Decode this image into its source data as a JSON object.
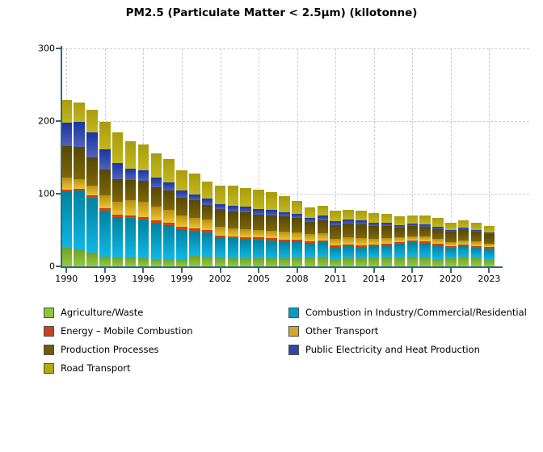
{
  "title": "PM2.5 (Particulate Matter < 2.5µm) (kilotonne)",
  "chart_data": {
    "type": "bar",
    "stacked": true,
    "title": "PM2.5 (Particulate Matter < 2.5µm) (kilotonne)",
    "xlabel": "",
    "ylabel": "",
    "ylim": [
      0,
      300
    ],
    "y_ticks": [
      0,
      100,
      200,
      300
    ],
    "categories": [
      1990,
      1991,
      1992,
      1993,
      1994,
      1995,
      1996,
      1997,
      1998,
      1999,
      2000,
      2001,
      2002,
      2003,
      2004,
      2005,
      2006,
      2007,
      2008,
      2009,
      2010,
      2011,
      2012,
      2013,
      2014,
      2015,
      2016,
      2017,
      2018,
      2019,
      2020,
      2021,
      2022,
      2023
    ],
    "x_tick_labels": [
      "1990",
      "1993",
      "1996",
      "1999",
      "2002",
      "2005",
      "2008",
      "2011",
      "2014",
      "2017",
      "2020",
      "2023"
    ],
    "grid": "dashed-gray, horizontal at 100/200/300 and vertical at labeled years",
    "legend_position": "bottom, two columns",
    "series": [
      {
        "name": "Agriculture/Waste",
        "legend_color": "#8CC63D",
        "gradient_top": "#6FA12B",
        "gradient_bottom": "#93CA3D",
        "values": [
          26,
          23,
          19,
          13,
          12,
          12,
          11,
          10,
          10,
          10,
          15,
          13,
          12,
          11,
          11,
          11,
          11,
          11,
          12,
          12,
          13,
          10,
          11,
          11,
          12,
          12,
          12,
          13,
          12,
          10,
          11,
          13,
          12,
          10
        ]
      },
      {
        "name": "Combustion in Industry/Commercial/Residential",
        "legend_color": "#009FC6",
        "gradient_top": "#00819E",
        "gradient_bottom": "#0FB7E6",
        "values": [
          77,
          81,
          76,
          64,
          56,
          55,
          54,
          50,
          47,
          41,
          34,
          34,
          28,
          28,
          27,
          26,
          25,
          23,
          22,
          20,
          20,
          17,
          17,
          16,
          16,
          17,
          19,
          20,
          20,
          19,
          15,
          15,
          14,
          14
        ]
      },
      {
        "name": "Energy – Mobile Combustion",
        "legend_color": "#C8441E",
        "gradient_top": "#C33708",
        "gradient_bottom": "#DD4A16",
        "values": [
          3,
          3,
          3,
          3,
          3,
          3,
          3,
          3,
          3,
          3,
          3,
          3,
          2.5,
          2.5,
          2.5,
          2.5,
          2.5,
          2.5,
          2.2,
          2.2,
          2.5,
          2.2,
          2.2,
          2.2,
          2,
          2,
          2.5,
          2.5,
          2.6,
          2.6,
          1.8,
          1.8,
          2.2,
          2.2
        ]
      },
      {
        "name": "Other Transport",
        "legend_color": "#D4A820",
        "gradient_top": "#B8900E",
        "gradient_bottom": "#EDC436",
        "values": [
          16,
          13,
          13,
          18,
          18,
          21,
          21,
          19,
          18,
          16,
          15,
          14,
          12,
          11,
          11,
          10,
          10,
          11,
          11,
          10,
          10,
          9,
          10,
          10,
          8,
          8,
          6,
          6,
          6,
          6,
          6,
          6,
          6,
          5
        ]
      },
      {
        "name": "Production Processes",
        "legend_color": "#6E5B10",
        "gradient_top": "#574704",
        "gradient_bottom": "#7C6609",
        "values": [
          44,
          45,
          39,
          35,
          31,
          28,
          29,
          27,
          27,
          24,
          24,
          21,
          24,
          23,
          23,
          22,
          22,
          21,
          19,
          17,
          18,
          18,
          19,
          19,
          18,
          17,
          14,
          14,
          14,
          14,
          14,
          15,
          14,
          13
        ]
      },
      {
        "name": "Public Electricity and Heat Production",
        "legend_color": "#2C4AA5",
        "gradient_top": "#1834A6",
        "gradient_bottom": "#5163B5",
        "values": [
          32,
          34,
          34,
          28,
          22,
          15,
          14,
          13,
          11,
          10,
          8,
          8,
          7,
          7.5,
          7.5,
          7,
          7,
          6.5,
          6,
          5.5,
          6,
          6,
          5.5,
          5.5,
          4.5,
          4,
          3,
          3,
          3,
          3,
          2.6,
          2.6,
          2.2,
          2.3
        ]
      },
      {
        "name": "Road Transport",
        "legend_color": "#B5A90F",
        "gradient_top": "#A89C0C",
        "gradient_bottom": "#C3B71F",
        "values": [
          31,
          27,
          32,
          38,
          42,
          38,
          36,
          34,
          32,
          28,
          29,
          24,
          26,
          28,
          26,
          27,
          25,
          22,
          18,
          14,
          14,
          15,
          13,
          13,
          13,
          12,
          13,
          12,
          12,
          12,
          10,
          10,
          10,
          9.5
        ]
      }
    ],
    "legend_columns": {
      "left": [
        "Agriculture/Waste",
        "Energy – Mobile Combustion",
        "Production Processes",
        "Road Transport"
      ],
      "right": [
        "Combustion in Industry/Commercial/Residential",
        "Other Transport",
        "Public Electricity and Heat Production"
      ]
    },
    "colors": {
      "axis": "#33677F",
      "grid": "#CCCCCC",
      "tick_label": "#000000",
      "background": "#FFFFFF"
    }
  }
}
